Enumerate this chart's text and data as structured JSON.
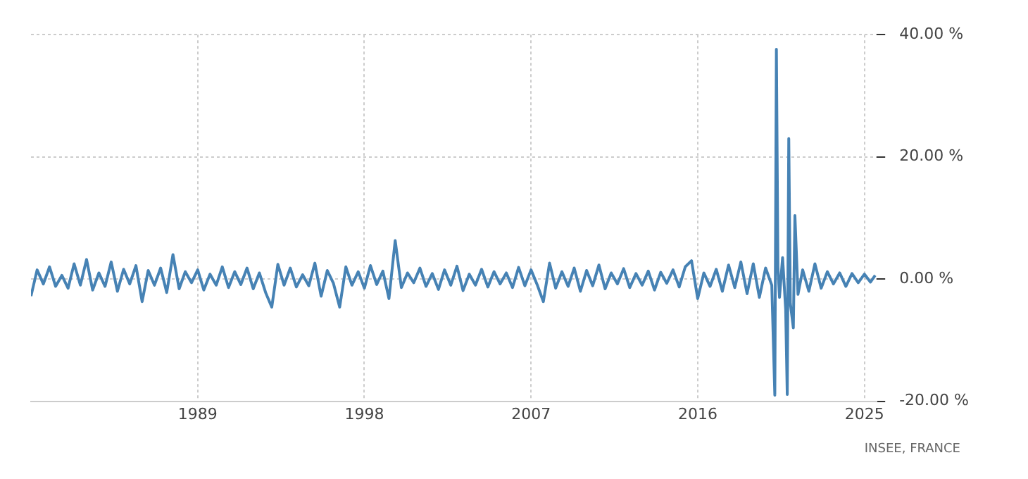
{
  "chart_data": {
    "type": "line",
    "annotations": [
      "INSEE, FRANCE"
    ],
    "x": [
      "1980-01",
      "1980-05",
      "1980-09",
      "1981-01",
      "1981-05",
      "1981-09",
      "1982-01",
      "1982-05",
      "1982-09",
      "1983-01",
      "1983-05",
      "1983-09",
      "1984-01",
      "1984-05",
      "1984-09",
      "1985-01",
      "1985-05",
      "1985-09",
      "1986-01",
      "1986-05",
      "1986-09",
      "1987-01",
      "1987-05",
      "1987-09",
      "1988-01",
      "1988-05",
      "1988-09",
      "1989-01",
      "1989-05",
      "1989-09",
      "1990-01",
      "1990-05",
      "1990-09",
      "1991-01",
      "1991-05",
      "1991-09",
      "1992-01",
      "1992-05",
      "1992-09",
      "1993-01",
      "1993-05",
      "1993-09",
      "1994-01",
      "1994-05",
      "1994-09",
      "1995-01",
      "1995-05",
      "1995-09",
      "1996-01",
      "1996-05",
      "1996-09",
      "1997-01",
      "1997-05",
      "1997-09",
      "1998-01",
      "1998-05",
      "1998-09",
      "1999-01",
      "1999-05",
      "1999-09",
      "2000-01",
      "2000-05",
      "2000-09",
      "2001-01",
      "2001-05",
      "2001-09",
      "2002-01",
      "2002-05",
      "2002-09",
      "2003-01",
      "2003-05",
      "2003-09",
      "2004-01",
      "2004-05",
      "2004-09",
      "2005-01",
      "2005-05",
      "2005-09",
      "2006-01",
      "2006-05",
      "2006-09",
      "2007-01",
      "2007-05",
      "2007-09",
      "2008-01",
      "2008-05",
      "2008-09",
      "2009-01",
      "2009-05",
      "2009-09",
      "2010-01",
      "2010-05",
      "2010-09",
      "2011-01",
      "2011-05",
      "2011-09",
      "2012-01",
      "2012-05",
      "2012-09",
      "2013-01",
      "2013-05",
      "2013-09",
      "2014-01",
      "2014-05",
      "2014-09",
      "2015-01",
      "2015-05",
      "2015-09",
      "2016-01",
      "2016-05",
      "2016-09",
      "2017-01",
      "2017-05",
      "2017-09",
      "2018-01",
      "2018-05",
      "2018-09",
      "2019-01",
      "2019-05",
      "2019-09",
      "2020-01",
      "2020-03",
      "2020-04",
      "2020-05",
      "2020-06",
      "2020-08",
      "2020-10",
      "2020-11",
      "2020-12",
      "2021-01",
      "2021-03",
      "2021-04",
      "2021-06",
      "2021-09",
      "2022-01",
      "2022-05",
      "2022-09",
      "2023-01",
      "2023-05",
      "2023-09",
      "2024-01",
      "2024-05",
      "2024-09",
      "2025-01",
      "2025-05",
      "2025-08"
    ],
    "series": [
      {
        "color": "#4682b4",
        "values": [
          -2.8,
          1.5,
          -0.8,
          2.0,
          -1.2,
          0.6,
          -1.5,
          2.5,
          -1.0,
          3.2,
          -1.8,
          1.0,
          -1.2,
          2.8,
          -2.0,
          1.6,
          -0.8,
          2.2,
          -3.7,
          1.4,
          -1.0,
          1.8,
          -2.2,
          4.0,
          -1.6,
          1.2,
          -0.6,
          1.5,
          -1.8,
          0.8,
          -1.0,
          2.0,
          -1.4,
          1.2,
          -0.9,
          1.8,
          -1.6,
          1.0,
          -2.2,
          -4.6,
          2.4,
          -1.0,
          1.8,
          -1.3,
          0.7,
          -1.1,
          2.6,
          -2.8,
          1.4,
          -0.7,
          -4.6,
          2.0,
          -1.0,
          1.2,
          -1.5,
          2.2,
          -0.9,
          1.3,
          -3.2,
          6.3,
          -1.4,
          1.0,
          -0.6,
          1.8,
          -1.2,
          0.9,
          -1.7,
          1.5,
          -1.0,
          2.1,
          -1.9,
          0.8,
          -1.0,
          1.6,
          -1.3,
          1.2,
          -0.8,
          1.0,
          -1.4,
          1.9,
          -1.1,
          1.5,
          -0.9,
          -3.7,
          2.6,
          -1.5,
          1.2,
          -1.2,
          1.8,
          -2.0,
          1.4,
          -1.1,
          2.3,
          -1.6,
          1.0,
          -0.8,
          1.7,
          -1.4,
          0.9,
          -1.0,
          1.3,
          -1.8,
          1.1,
          -0.7,
          1.5,
          -1.3,
          2.0,
          3.0,
          -3.2,
          1.0,
          -1.2,
          1.6,
          -2.0,
          2.3,
          -1.4,
          2.8,
          -2.4,
          2.5,
          -3.0,
          1.8,
          -1.0,
          -19.0,
          37.6,
          2.0,
          -3.0,
          3.5,
          -5.0,
          -18.9,
          23.0,
          -4.0,
          -8.0,
          10.4,
          -2.5,
          1.5,
          -2.0,
          2.5,
          -1.5,
          1.2,
          -0.8,
          1.0,
          -1.2,
          0.9,
          -0.6,
          0.8,
          -0.5,
          0.6
        ]
      }
    ],
    "xlim": [
      "1980-01",
      "2025-09"
    ],
    "xticks": [
      "1989",
      "1998",
      "2007",
      "2016",
      "2025"
    ],
    "ylim": [
      -20,
      40
    ],
    "yticks": [
      {
        "value": -20,
        "label": "-20.00 %"
      },
      {
        "value": 0,
        "label": "0.00 %"
      },
      {
        "value": 20,
        "label": "20.00 %"
      },
      {
        "value": 40,
        "label": "40.00 %"
      }
    ],
    "grid": true,
    "legend": false,
    "marker": "none",
    "line_style": "solid"
  }
}
